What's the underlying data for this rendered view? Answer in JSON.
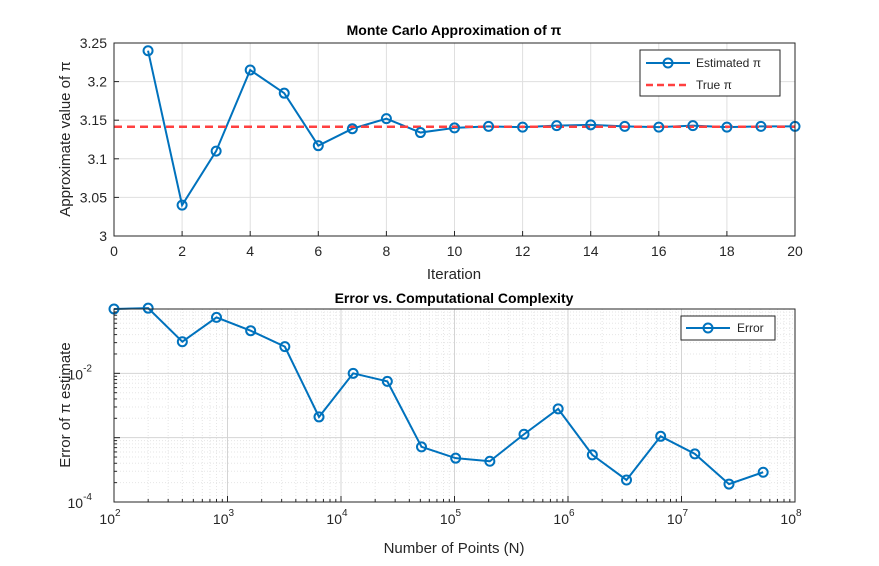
{
  "chart_data": [
    {
      "type": "line",
      "title": "Monte Carlo Approximation of π",
      "xlabel": "Iteration",
      "ylabel": "Approximate value of π",
      "xlim": [
        0,
        20
      ],
      "ylim": [
        3,
        3.25
      ],
      "xticks": [
        "0",
        "2",
        "4",
        "6",
        "8",
        "10",
        "12",
        "14",
        "16",
        "18",
        "20"
      ],
      "yticks": [
        "3",
        "3.05",
        "3.1",
        "3.15",
        "3.2",
        "3.25"
      ],
      "grid": true,
      "legend_position": "top-right",
      "series": [
        {
          "name": "Estimated π",
          "color": "#0072bd",
          "marker": "circle",
          "x": [
            1,
            2,
            3,
            4,
            5,
            6,
            7,
            8,
            9,
            10,
            11,
            12,
            13,
            14,
            15,
            16,
            17,
            18,
            19,
            20
          ],
          "y": [
            3.24,
            3.04,
            3.11,
            3.215,
            3.185,
            3.117,
            3.139,
            3.152,
            3.134,
            3.14,
            3.142,
            3.141,
            3.143,
            3.144,
            3.142,
            3.141,
            3.143,
            3.141,
            3.142,
            3.142
          ]
        },
        {
          "name": "True π",
          "color": "#ff4040",
          "style": "dashed",
          "x": [
            0,
            20
          ],
          "y": [
            3.14159,
            3.14159
          ]
        }
      ]
    },
    {
      "type": "line",
      "title": "Error vs. Computational Complexity",
      "xlabel": "Number of Points (N)",
      "ylabel": "Error of π estimate",
      "xscale": "log",
      "yscale": "log",
      "xlim": [
        100,
        100000000
      ],
      "ylim": [
        0.0001,
        0.1
      ],
      "xticks": [
        {
          "base": "10",
          "exp": "2"
        },
        {
          "base": "10",
          "exp": "3"
        },
        {
          "base": "10",
          "exp": "4"
        },
        {
          "base": "10",
          "exp": "5"
        },
        {
          "base": "10",
          "exp": "6"
        },
        {
          "base": "10",
          "exp": "7"
        },
        {
          "base": "10",
          "exp": "8"
        }
      ],
      "yticks": [
        {
          "base": "10",
          "exp": "-4"
        },
        {
          "base": "10",
          "exp": "-2"
        }
      ],
      "grid": true,
      "legend_position": "top-right",
      "series": [
        {
          "name": "Error",
          "color": "#0072bd",
          "marker": "circle",
          "x": [
            100,
            200,
            400,
            800,
            1600,
            3200,
            6400,
            12800,
            25600,
            51200,
            102400,
            204800,
            409600,
            819200,
            1638400,
            3276800,
            6553600,
            13107200,
            26214400,
            52428800
          ],
          "y": [
            0.1,
            0.103,
            0.031,
            0.074,
            0.046,
            0.026,
            0.0021,
            0.01,
            0.0075,
            0.00072,
            0.00048,
            0.00043,
            0.00113,
            0.0028,
            0.00054,
            0.00022,
            0.00105,
            0.00056,
            0.00019,
            0.00029
          ]
        }
      ]
    }
  ]
}
